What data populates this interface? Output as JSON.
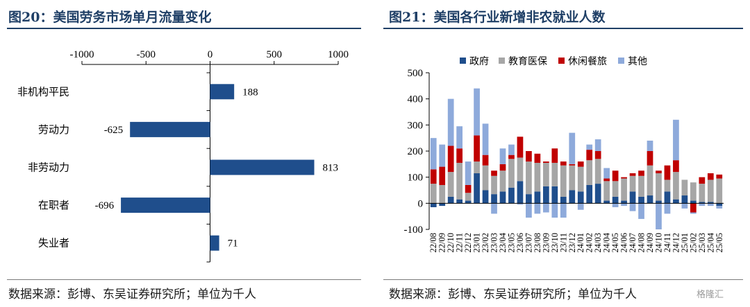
{
  "left_panel": {
    "title": "图20：美国劳务市场单月流量变化",
    "source": "数据来源：彭博、东吴证券研究所；单位为千人"
  },
  "right_panel": {
    "title": "图21：美国各行业新增非农就业人数",
    "source": "数据来源：彭博、东吴证券研究所；单位为千人"
  },
  "watermark": "格隆汇",
  "chart_data": [
    {
      "type": "bar",
      "orientation": "horizontal",
      "title": "美国劳务市场单月流量变化",
      "categories": [
        "非机构平民",
        "劳动力",
        "非劳动力",
        "在职者",
        "失业者"
      ],
      "values": [
        188,
        -625,
        813,
        -696,
        71
      ],
      "data_labels": [
        "188",
        "-625",
        "813",
        "-696",
        "71"
      ],
      "xlim": [
        -1000,
        1000
      ],
      "xticks": [
        -1000,
        -500,
        0,
        500,
        1000
      ],
      "x_axis_position": "top",
      "bar_color": "#1f4e8c",
      "grid": false,
      "unit": "千人"
    },
    {
      "type": "bar",
      "stacked": true,
      "title": "美国各行业新增非农就业人数",
      "categories": [
        "22/08",
        "22/09",
        "22/10",
        "22/11",
        "22/12",
        "23/01",
        "23/02",
        "23/03",
        "23/04",
        "23/05",
        "23/06",
        "23/07",
        "23/08",
        "23/09",
        "23/10",
        "23/11",
        "23/12",
        "24/01",
        "24/02",
        "24/03",
        "24/04",
        "24/05",
        "24/06",
        "24/07",
        "24/08",
        "24/09",
        "24/10",
        "24/11",
        "24/12",
        "25/01",
        "25/02",
        "25/03",
        "25/04",
        "25/05"
      ],
      "series": [
        {
          "name": "政府",
          "color": "#1f4e8c",
          "values": [
            -15,
            -10,
            25,
            15,
            10,
            115,
            50,
            35,
            45,
            60,
            85,
            35,
            45,
            65,
            65,
            25,
            50,
            45,
            70,
            75,
            10,
            25,
            10,
            45,
            25,
            30,
            10,
            45,
            15,
            30,
            10,
            5,
            5,
            -10
          ]
        },
        {
          "name": "教育医保",
          "color": "#a6a6a6",
          "values": [
            75,
            70,
            95,
            140,
            30,
            45,
            95,
            70,
            80,
            110,
            90,
            125,
            110,
            90,
            90,
            120,
            95,
            95,
            95,
            95,
            75,
            60,
            85,
            60,
            80,
            115,
            105,
            45,
            105,
            60,
            70,
            70,
            85,
            95
          ]
        },
        {
          "name": "休闲餐旅",
          "color": "#c00000",
          "values": [
            55,
            70,
            100,
            55,
            30,
            100,
            40,
            20,
            25,
            15,
            80,
            40,
            35,
            5,
            55,
            15,
            5,
            20,
            40,
            30,
            10,
            40,
            5,
            10,
            20,
            55,
            10,
            55,
            45,
            0,
            -35,
            25,
            25,
            15
          ]
        },
        {
          "name": "其他",
          "color": "#8eaadb",
          "values": [
            120,
            85,
            180,
            85,
            90,
            180,
            120,
            -40,
            60,
            40,
            -5,
            -55,
            -40,
            -35,
            -55,
            -55,
            120,
            -25,
            20,
            45,
            40,
            -15,
            -10,
            -30,
            -60,
            40,
            -100,
            -40,
            155,
            -20,
            -5,
            -10,
            -10,
            -10
          ]
        }
      ],
      "ylim": [
        -100,
        500
      ],
      "yticks": [
        -100,
        0,
        100,
        200,
        300,
        400,
        500
      ],
      "legend": "top",
      "grid": false,
      "unit": "千人"
    }
  ]
}
